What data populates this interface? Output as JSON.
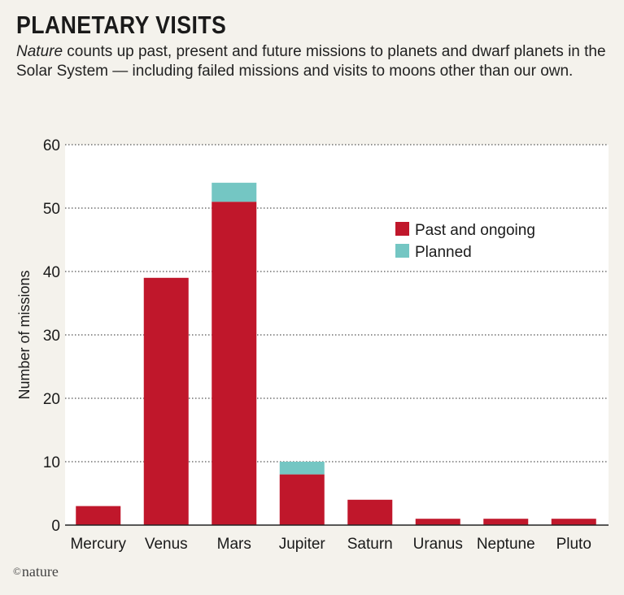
{
  "header": {
    "title": "PLANETARY VISITS",
    "subtitle_em": "Nature",
    "subtitle_rest": " counts up past, present and future missions to planets and dwarf planets in the Solar System — including failed missions and visits to moons other than our own."
  },
  "credit": {
    "symbol": "©",
    "text": "nature"
  },
  "chart_data": {
    "type": "bar",
    "stacked": true,
    "categories": [
      "Mercury",
      "Venus",
      "Mars",
      "Jupiter",
      "Saturn",
      "Uranus",
      "Neptune",
      "Pluto"
    ],
    "series": [
      {
        "name": "Past and ongoing",
        "color": "#c0172b",
        "values": [
          3,
          39,
          51,
          8,
          4,
          1,
          1,
          1
        ]
      },
      {
        "name": "Planned",
        "color": "#74c6c3",
        "values": [
          0,
          0,
          3,
          2,
          0,
          0,
          0,
          0
        ]
      }
    ],
    "ylabel": "Number of missions",
    "ylim": [
      0,
      60
    ],
    "yticks": [
      0,
      10,
      20,
      30,
      40,
      50,
      60
    ],
    "grid": true,
    "legend_position": "top-right",
    "colors": {
      "plot_background": "#ffffff",
      "page_background": "#f4f2ec"
    }
  }
}
